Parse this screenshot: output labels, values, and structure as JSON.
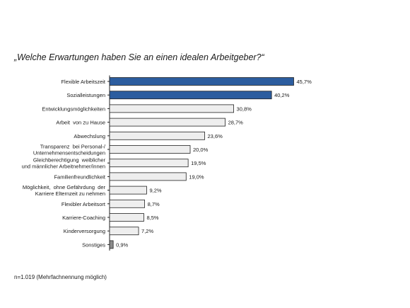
{
  "chart_data": {
    "type": "bar",
    "orientation": "horizontal",
    "title": "„Welche Erwartungen haben Sie an einen idealen Arbeitgeber?“",
    "categories": [
      [
        "Flexible Arbeitszeit"
      ],
      [
        "Sozialleistungen"
      ],
      [
        "Entwicklungsmöglichkeiten"
      ],
      [
        "Arbeit  von zu Hause"
      ],
      [
        "Abwechslung"
      ],
      [
        "Transparenz  bei Personal-/",
        "Unternehmensentscheidungen"
      ],
      [
        "Gleichberechtigung  weiblicher",
        "und männlicher Arbeitnehmer/innen"
      ],
      [
        "Familienfreundlichkeit"
      ],
      [
        "Möglichkeit,  ohne Gefährdung  der",
        "Karriere Elternzeit zu nehmen"
      ],
      [
        "Flexibler Arbeitsort"
      ],
      [
        "Karriere-Coaching"
      ],
      [
        "Kinderversorgung"
      ],
      [
        "Sonstiges"
      ]
    ],
    "values": [
      45.7,
      40.2,
      30.8,
      28.7,
      23.6,
      20.0,
      19.5,
      19.0,
      9.2,
      8.7,
      8.5,
      7.2,
      0.9
    ],
    "value_labels": [
      "45,7%",
      "40,2%",
      "30,8%",
      "28,7%",
      "23,6%",
      "20,0%",
      "19,5%",
      "19,0%",
      "9,2%",
      "8,7%",
      "8,5%",
      "7,2%",
      "0,9%"
    ],
    "bar_styles": [
      "highlight",
      "highlight",
      "default",
      "default",
      "default",
      "default",
      "default",
      "default",
      "default",
      "default",
      "default",
      "default",
      "other"
    ],
    "colors": {
      "highlight": "#2c5d9f",
      "default": "#eeeeee",
      "other": "#8c8c8c",
      "outline": "#222222",
      "axis": "#222222"
    },
    "xlim": [
      0,
      50
    ],
    "grid": false,
    "legend": "none"
  },
  "footnote": "n=1.019  (Mehrfachnennung  möglich)"
}
